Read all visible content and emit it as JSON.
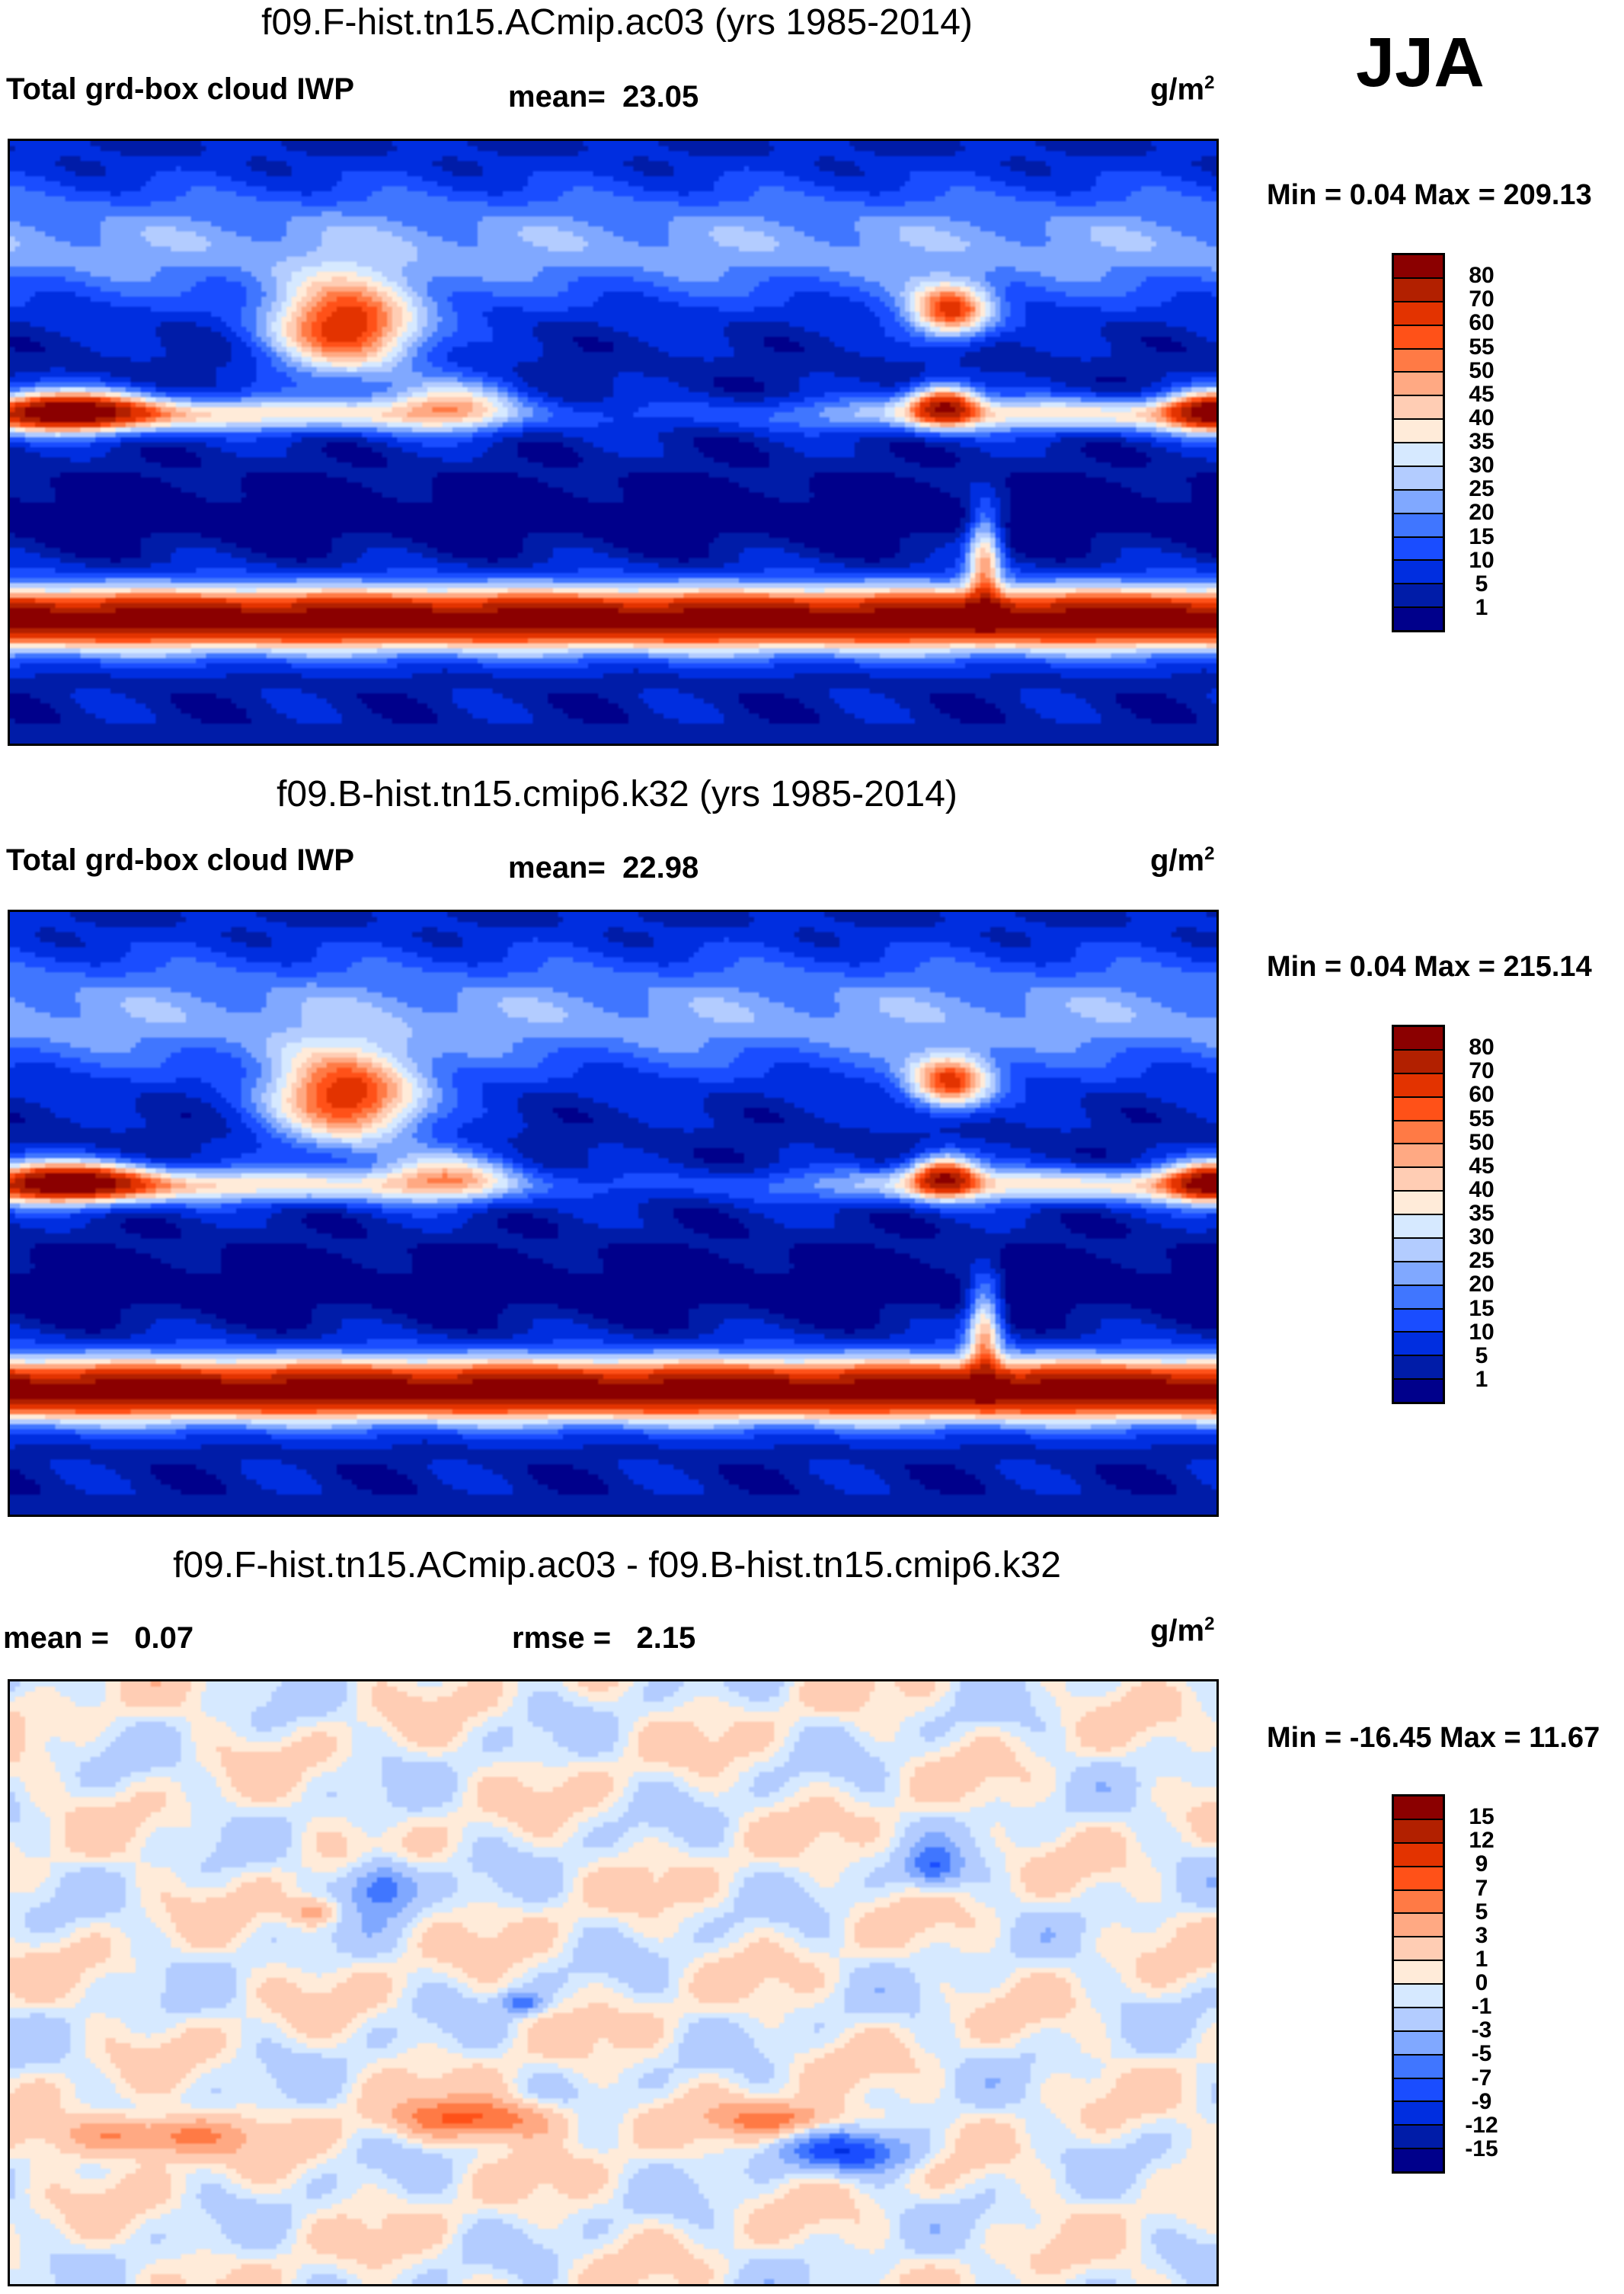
{
  "season": "JJA",
  "chart_data": [
    {
      "type": "heatmap",
      "title": "f09.F-hist.tn15.ACmip.ac03 (yrs 1985-2014)",
      "variable": "Total grd-box cloud IWP",
      "mean_label": "mean=",
      "mean": "23.05",
      "units": "g/m",
      "units_sup": "2",
      "minmax": "Min =   0.04 Max = 209.13",
      "levels": [
        "80",
        "70",
        "60",
        "55",
        "50",
        "45",
        "40",
        "35",
        "30",
        "25",
        "20",
        "15",
        "10",
        "5",
        "1"
      ]
    },
    {
      "type": "heatmap",
      "title": "f09.B-hist.tn15.cmip6.k32 (yrs 1985-2014)",
      "variable": "Total grd-box cloud IWP",
      "mean_label": "mean=",
      "mean": "22.98",
      "units": "g/m",
      "units_sup": "2",
      "minmax": "Min =   0.04 Max = 215.14",
      "levels": [
        "80",
        "70",
        "60",
        "55",
        "50",
        "45",
        "40",
        "35",
        "30",
        "25",
        "20",
        "15",
        "10",
        "5",
        "1"
      ]
    },
    {
      "type": "heatmap",
      "title": "f09.F-hist.tn15.ACmip.ac03 - f09.B-hist.tn15.cmip6.k32",
      "mean_label": "mean =",
      "mean": "0.07",
      "rmse_label": "rmse =",
      "rmse": "2.15",
      "units": "g/m",
      "units_sup": "2",
      "minmax": "Min = -16.45 Max =  11.67",
      "levels": [
        "15",
        "12",
        "9",
        "7",
        "5",
        "3",
        "1",
        "0",
        "-1",
        "-3",
        "-5",
        "-7",
        "-9",
        "-12",
        "-15"
      ]
    }
  ],
  "palette": [
    "#8b0000",
    "#b22000",
    "#e33300",
    "#ff5118",
    "#ff7a45",
    "#ffa983",
    "#ffcdb4",
    "#ffebd9",
    "#d6e9ff",
    "#b3ccff",
    "#80a8ff",
    "#4076ff",
    "#1a4dff",
    "#002ee0",
    "#001ca8",
    "#00008b"
  ]
}
